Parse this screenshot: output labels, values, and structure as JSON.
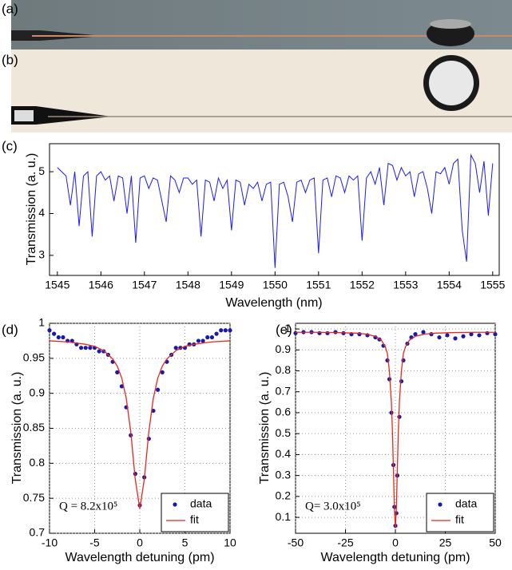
{
  "panels": [
    {
      "label": "(a)"
    },
    {
      "label": "(b)"
    }
  ],
  "chart_data": [
    {
      "type": "line",
      "label": "(c)",
      "x_label": "Wavelength (nm)",
      "y_label": "Transmission (a. u.)",
      "xlim": [
        1544.82,
        1555.15
      ],
      "ylim": [
        2.52,
        5.67
      ],
      "xticks": [
        1545,
        1546,
        1547,
        1548,
        1549,
        1550,
        1551,
        1552,
        1553,
        1554,
        1555
      ],
      "yticks": [
        3,
        4,
        5
      ],
      "grid": false,
      "series": [
        {
          "color": "#1a1aff",
          "mode": "line",
          "x": [
            1545.0,
            1545.1,
            1545.2,
            1545.3,
            1545.4,
            1545.5,
            1545.6,
            1545.7,
            1545.8,
            1545.9,
            1546.0,
            1546.1,
            1546.2,
            1546.3,
            1546.4,
            1546.5,
            1546.6,
            1546.7,
            1546.8,
            1546.9,
            1547.0,
            1547.1,
            1547.2,
            1547.3,
            1547.4,
            1547.5,
            1547.6,
            1547.7,
            1547.8,
            1547.9,
            1548.0,
            1548.1,
            1548.2,
            1548.3,
            1548.4,
            1548.5,
            1548.6,
            1548.7,
            1548.8,
            1548.9,
            1549.0,
            1549.1,
            1549.2,
            1549.3,
            1549.4,
            1549.5,
            1549.6,
            1549.7,
            1549.8,
            1549.9,
            1550.0,
            1550.1,
            1550.2,
            1550.3,
            1550.4,
            1550.5,
            1550.6,
            1550.7,
            1550.8,
            1550.9,
            1551.0,
            1551.1,
            1551.2,
            1551.3,
            1551.4,
            1551.5,
            1551.6,
            1551.7,
            1551.8,
            1551.9,
            1552.0,
            1552.1,
            1552.2,
            1552.3,
            1552.4,
            1552.5,
            1552.6,
            1552.7,
            1552.8,
            1552.9,
            1553.0,
            1553.1,
            1553.2,
            1553.3,
            1553.4,
            1553.5,
            1553.6,
            1553.7,
            1553.8,
            1553.9,
            1554.0,
            1554.1,
            1554.2,
            1554.3,
            1554.4,
            1554.5,
            1554.6,
            1554.7,
            1554.8,
            1554.9,
            1555.0
          ],
          "values": [
            5.1,
            5.0,
            4.9,
            4.2,
            5.0,
            3.7,
            4.9,
            5.0,
            3.45,
            4.9,
            5.0,
            4.8,
            4.9,
            4.3,
            4.9,
            4.85,
            4.0,
            4.9,
            3.3,
            4.85,
            4.9,
            4.6,
            4.85,
            4.8,
            4.3,
            3.8,
            4.9,
            4.8,
            4.5,
            4.85,
            4.85,
            4.7,
            4.8,
            3.45,
            4.8,
            4.75,
            4.3,
            4.85,
            4.6,
            4.8,
            3.6,
            4.8,
            4.75,
            4.2,
            4.7,
            4.6,
            4.75,
            4.3,
            4.7,
            4.75,
            2.7,
            4.7,
            4.75,
            4.4,
            3.8,
            4.75,
            4.8,
            4.5,
            4.8,
            4.85,
            3.05,
            4.8,
            4.85,
            4.4,
            4.9,
            4.85,
            4.5,
            4.9,
            4.8,
            4.9,
            3.35,
            4.85,
            5.0,
            4.7,
            5.1,
            4.2,
            5.2,
            5.15,
            4.8,
            5.1,
            4.9,
            5.0,
            4.4,
            4.95,
            5.0,
            4.6,
            4.0,
            5.0,
            4.95,
            5.1,
            4.7,
            5.2,
            5.3,
            3.6,
            2.85,
            5.4,
            5.2,
            4.5,
            5.25,
            3.95,
            5.2
          ]
        }
      ]
    },
    {
      "type": "scatter",
      "label": "(d)",
      "x_label": "Wavelength detuning (pm)",
      "y_label": "Transmission (a. u.)",
      "annotation": "Q = 8.2x10⁵",
      "legend": "lower right",
      "xlim": [
        -10,
        10
      ],
      "ylim": [
        0.7,
        1
      ],
      "xticks": [
        -10,
        -5,
        0,
        5,
        10
      ],
      "yticks": [
        0.7,
        0.75,
        0.8,
        0.85,
        0.9,
        0.95,
        1
      ],
      "grid": true,
      "series": [
        {
          "name": "data",
          "color": "#1a1aa8",
          "mode": "markers",
          "x": [
            -10,
            -9.5,
            -9,
            -8.5,
            -8,
            -7.5,
            -7,
            -6.5,
            -6,
            -5.5,
            -5,
            -4.5,
            -4,
            -3.5,
            -3,
            -2.5,
            -2,
            -1.5,
            -1,
            -0.5,
            0,
            0.5,
            1,
            1.5,
            2,
            2.5,
            3,
            3.5,
            4,
            4.5,
            5,
            5.5,
            6,
            6.5,
            7,
            7.5,
            8,
            8.5,
            9,
            9.5,
            10
          ],
          "values": [
            0.99,
            0.985,
            0.98,
            0.98,
            0.975,
            0.975,
            0.97,
            0.965,
            0.965,
            0.965,
            0.965,
            0.96,
            0.96,
            0.955,
            0.945,
            0.93,
            0.91,
            0.88,
            0.84,
            0.785,
            0.74,
            0.78,
            0.835,
            0.875,
            0.905,
            0.93,
            0.945,
            0.955,
            0.965,
            0.965,
            0.965,
            0.97,
            0.97,
            0.975,
            0.975,
            0.98,
            0.98,
            0.985,
            0.99,
            0.99,
            0.99
          ]
        },
        {
          "name": "fit",
          "color": "#e8281e",
          "mode": "line",
          "x": [
            -10,
            -8,
            -6,
            -5,
            -4,
            -3,
            -2.5,
            -2,
            -1.5,
            -1,
            -0.5,
            0,
            0.5,
            1,
            1.5,
            2,
            2.5,
            3,
            4,
            5,
            6,
            8,
            10
          ],
          "values": [
            0.975,
            0.9735,
            0.97,
            0.967,
            0.961,
            0.949,
            0.939,
            0.922,
            0.893,
            0.845,
            0.777,
            0.735,
            0.777,
            0.845,
            0.893,
            0.922,
            0.939,
            0.949,
            0.961,
            0.967,
            0.97,
            0.9735,
            0.975
          ]
        }
      ]
    },
    {
      "type": "scatter",
      "label": "(e)",
      "x_label": "Wavelength detuning (pm)",
      "y_label": "Transmission (a. u.)",
      "annotation": "Q= 3.0x10⁵",
      "legend": "lower right",
      "xlim": [
        -50,
        50
      ],
      "ylim": [
        0.024,
        1.027
      ],
      "xticks": [
        -50,
        -25,
        0,
        25,
        50
      ],
      "yticks": [
        0.1,
        0.2,
        0.3,
        0.4,
        0.5,
        0.6,
        0.7,
        0.8,
        0.9,
        1
      ],
      "grid": true,
      "series": [
        {
          "name": "data",
          "color": "#1a1aa8",
          "mode": "markers",
          "x": [
            -50,
            -46,
            -42,
            -38,
            -34,
            -30,
            -26,
            -22,
            -18,
            -14,
            -10,
            -8,
            -6,
            -4,
            -3,
            -2,
            -1,
            -0.5,
            0,
            0.5,
            1,
            2,
            3,
            4,
            6,
            8,
            10,
            14,
            18,
            22,
            26,
            30,
            34,
            38,
            42,
            46,
            50
          ],
          "values": [
            0.98,
            0.985,
            0.985,
            0.98,
            0.98,
            0.985,
            0.98,
            0.975,
            0.975,
            0.97,
            0.96,
            0.95,
            0.92,
            0.85,
            0.76,
            0.6,
            0.35,
            0.15,
            0.06,
            0.12,
            0.3,
            0.58,
            0.75,
            0.85,
            0.93,
            0.96,
            0.975,
            0.985,
            0.975,
            0.96,
            0.97,
            0.955,
            0.965,
            0.975,
            0.97,
            0.98,
            0.975
          ]
        },
        {
          "name": "fit",
          "color": "#e8281e",
          "mode": "line",
          "x": [
            -50,
            -40,
            -30,
            -20,
            -15,
            -10,
            -7,
            -5,
            -4,
            -3,
            -2,
            -1.5,
            -1,
            -0.5,
            0,
            0.5,
            1,
            1.5,
            2,
            3,
            4,
            5,
            7,
            10,
            15,
            20,
            30,
            40,
            50
          ],
          "values": [
            0.984,
            0.984,
            0.983,
            0.98,
            0.976,
            0.965,
            0.946,
            0.914,
            0.882,
            0.798,
            0.648,
            0.518,
            0.338,
            0.143,
            0.05,
            0.143,
            0.338,
            0.518,
            0.648,
            0.798,
            0.882,
            0.914,
            0.946,
            0.965,
            0.976,
            0.98,
            0.983,
            0.984,
            0.984
          ]
        }
      ]
    }
  ]
}
